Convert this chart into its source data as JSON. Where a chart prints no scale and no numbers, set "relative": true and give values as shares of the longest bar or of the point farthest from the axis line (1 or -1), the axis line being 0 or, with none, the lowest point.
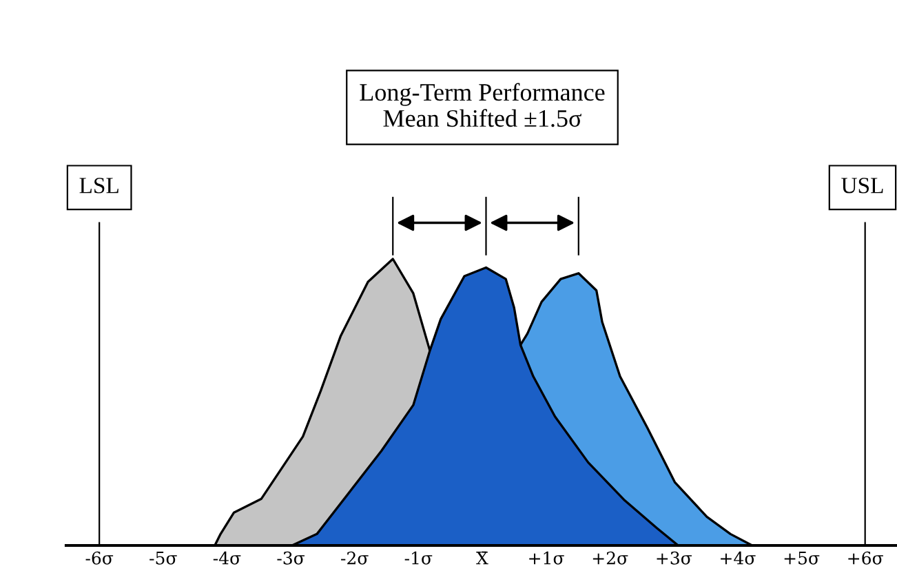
{
  "chart_data": {
    "type": "area",
    "title": "Long-Term Performance\nMean Shifted ±1.5σ",
    "relative": true,
    "grid": false,
    "xlim": [
      -6.52,
      6.5
    ],
    "xticks": [
      {
        "value": -6,
        "label": "-6σ"
      },
      {
        "value": -5,
        "label": "-5σ"
      },
      {
        "value": -4,
        "label": "-4σ"
      },
      {
        "value": -3,
        "label": "-3σ"
      },
      {
        "value": -2,
        "label": "-2σ"
      },
      {
        "value": -1,
        "label": "-1σ"
      },
      {
        "value": 0,
        "label": "X̄"
      },
      {
        "value": 1,
        "label": "+1σ"
      },
      {
        "value": 2,
        "label": "+2σ"
      },
      {
        "value": 3,
        "label": "+3σ"
      },
      {
        "value": 4,
        "label": "+4σ"
      },
      {
        "value": 5,
        "label": "+5σ"
      },
      {
        "value": 6,
        "label": "+6σ"
      }
    ],
    "series": [
      {
        "color": "#c4c4c4",
        "x": [
          -4.19,
          -4.1,
          -3.89,
          -3.46,
          -2.81,
          -2.53,
          -2.22,
          -1.79,
          -1.4,
          -1.08,
          -0.82
        ],
        "values": [
          0,
          0.04,
          0.115,
          0.163,
          0.38,
          0.54,
          0.73,
          0.92,
          1.0,
          0.88,
          0.68
        ]
      },
      {
        "color": "#4b9de6",
        "x": [
          0.6,
          0.71,
          0.93,
          1.23,
          1.51,
          1.79,
          1.88,
          2.16,
          2.59,
          3.02,
          3.52,
          3.89,
          4.23
        ],
        "values": [
          0.7,
          0.74,
          0.85,
          0.93,
          0.95,
          0.89,
          0.78,
          0.59,
          0.41,
          0.22,
          0.1,
          0.04,
          0
        ]
      },
      {
        "color": "#1b5fc6",
        "x": [
          -2.98,
          -2.59,
          -1.58,
          -1.08,
          -0.82,
          -0.65,
          -0.28,
          0.06,
          0.37,
          0.5,
          0.6,
          0.8,
          1.14,
          1.66,
          2.22,
          2.74,
          3.07
        ],
        "values": [
          0,
          0.04,
          0.33,
          0.49,
          0.68,
          0.79,
          0.94,
          0.97,
          0.93,
          0.83,
          0.7,
          0.59,
          0.45,
          0.29,
          0.16,
          0.06,
          0
        ]
      }
    ],
    "ref_lines": [
      {
        "axis": "x",
        "value": -6,
        "label": "LSL",
        "color": "#000000"
      },
      {
        "axis": "x",
        "value": 6,
        "label": "USL",
        "color": "#000000"
      }
    ]
  }
}
